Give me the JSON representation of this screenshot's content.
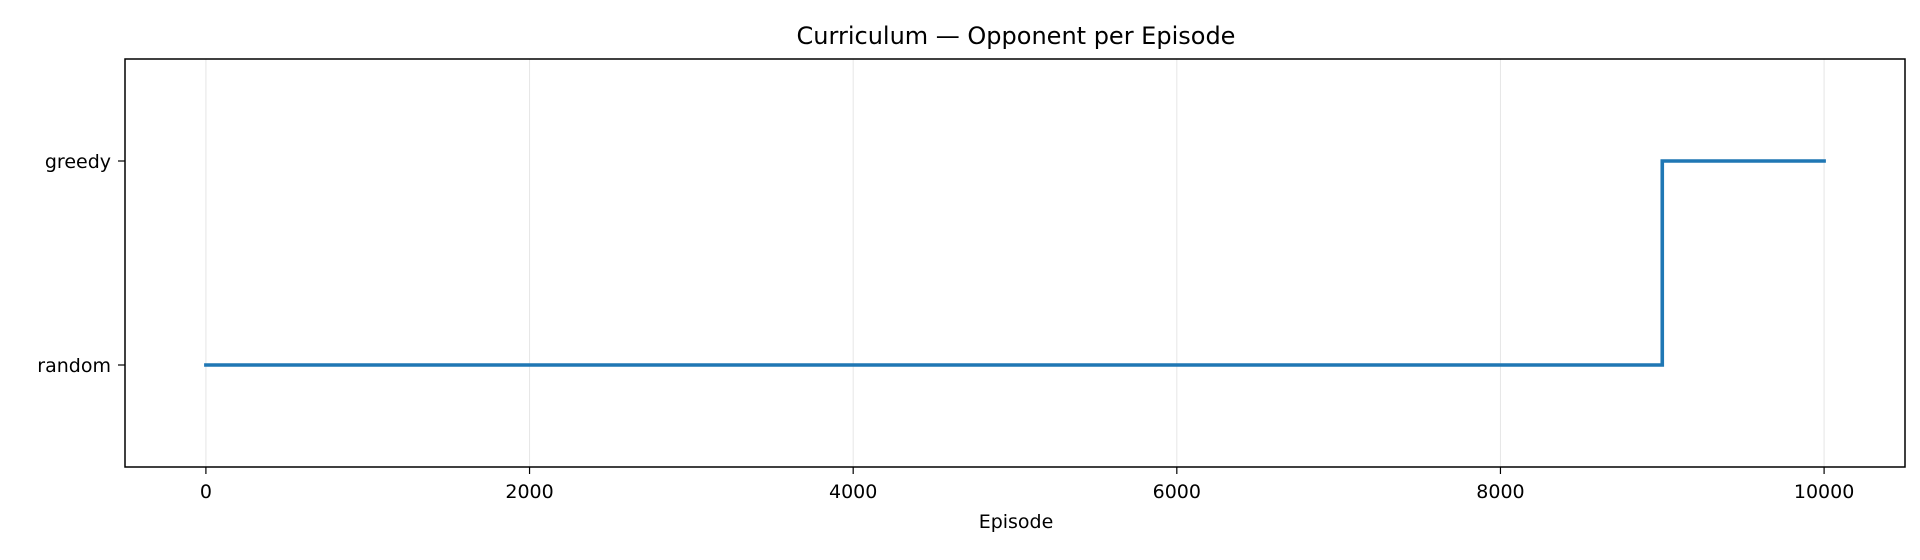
{
  "chart_data": {
    "type": "line",
    "drawstyle": "steps-post",
    "title": "Curriculum — Opponent per Episode",
    "xlabel": "Episode",
    "ylabel": "",
    "xlim": [
      -500,
      10500
    ],
    "ylim": [
      -0.5,
      1.5
    ],
    "x_ticks": [
      0,
      2000,
      4000,
      6000,
      8000,
      10000
    ],
    "x_tick_labels": [
      "0",
      "2000",
      "4000",
      "6000",
      "8000",
      "10000"
    ],
    "y_ticks": [
      0,
      1
    ],
    "y_tick_labels": [
      "random",
      "greedy"
    ],
    "grid": "x-axis only",
    "series": [
      {
        "color": "#1f77b4",
        "x": [
          0,
          9000,
          10000
        ],
        "y": [
          0,
          1,
          1
        ]
      }
    ]
  }
}
